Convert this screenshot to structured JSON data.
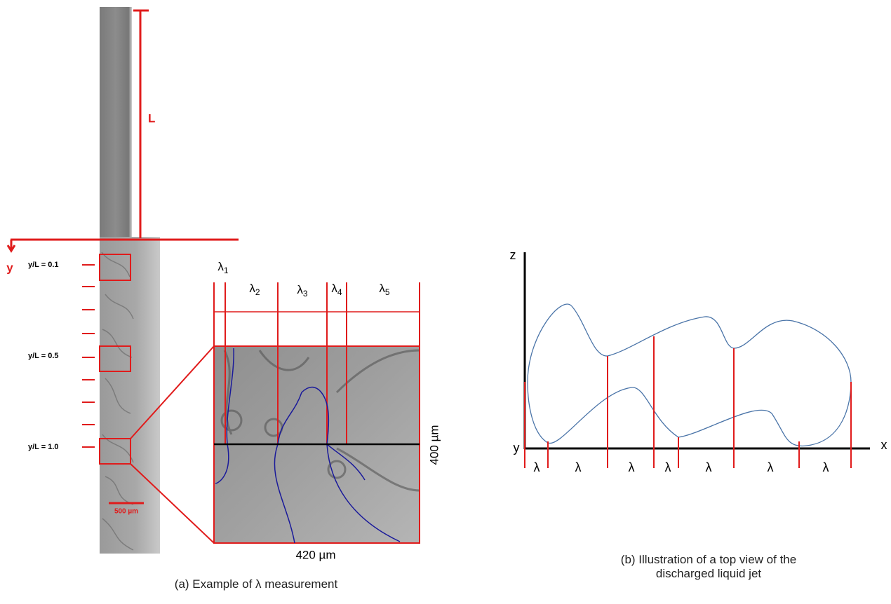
{
  "panel_a": {
    "length_label": "L",
    "axis_label": "y",
    "positions": [
      "y/L = 0.1",
      "y/L = 0.5",
      "y/L = 1.0"
    ],
    "scale_bar": "500 µm",
    "lambdas": [
      {
        "symbol": "λ",
        "subscript": "1"
      },
      {
        "symbol": "λ",
        "subscript": "2"
      },
      {
        "symbol": "λ",
        "subscript": "3"
      },
      {
        "symbol": "λ",
        "subscript": "4"
      },
      {
        "symbol": "λ",
        "subscript": "5"
      }
    ],
    "height_label": "400 µm",
    "width_label": "420 µm",
    "caption": "(a) Example of λ measurement"
  },
  "panel_b": {
    "z_label": "z",
    "y_label": "y",
    "x_label": "x",
    "lambdas": [
      "λ",
      "λ",
      "λ",
      "λ",
      "λ",
      "λ",
      "λ"
    ],
    "caption": "(b) Illustration of a top view of the discharged liquid jet"
  }
}
